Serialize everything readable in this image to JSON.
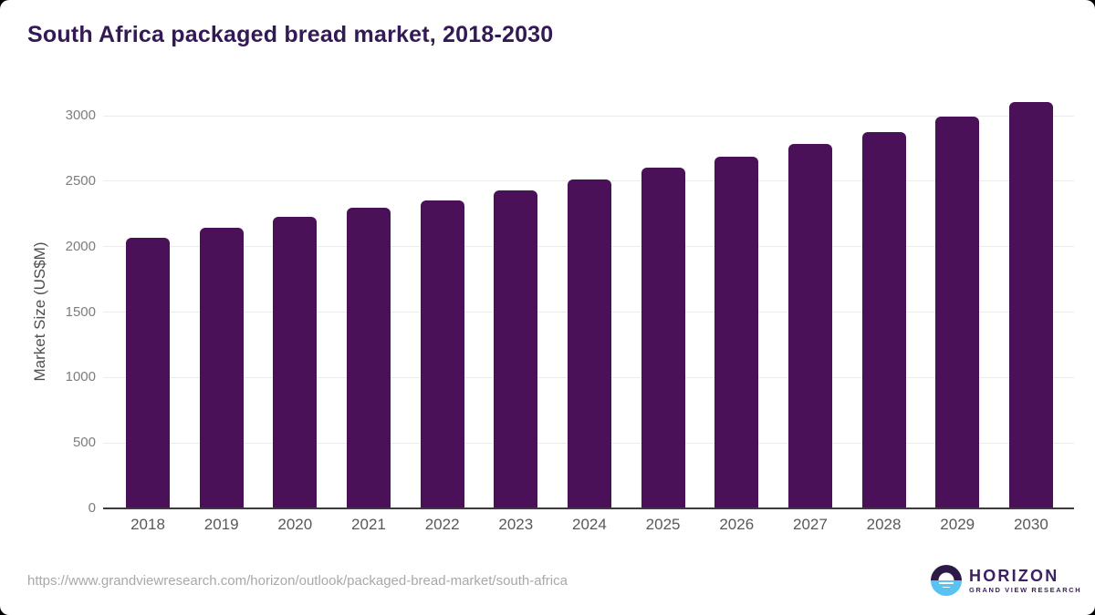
{
  "chart_data": {
    "type": "bar",
    "title": "South Africa packaged bread market, 2018-2030",
    "categories": [
      "2018",
      "2019",
      "2020",
      "2021",
      "2022",
      "2023",
      "2024",
      "2025",
      "2026",
      "2027",
      "2028",
      "2029",
      "2030"
    ],
    "values": [
      2065,
      2145,
      2225,
      2295,
      2355,
      2430,
      2510,
      2600,
      2690,
      2785,
      2875,
      2990,
      3105
    ],
    "xlabel": "",
    "ylabel": "Market Size (US$M)",
    "ylim": [
      0,
      3000
    ],
    "yticks": [
      0,
      500,
      1000,
      1500,
      2000,
      2500,
      3000
    ],
    "grid": true,
    "legend_position": "none",
    "bar_color": "#4a1158"
  },
  "footer": {
    "source_url": "https://www.grandviewresearch.com/horizon/outlook/packaged-bread-market/south-africa",
    "logo": {
      "brand": "HORIZON",
      "sub_brand": "GRAND VIEW RESEARCH",
      "icon": "sunrise-horizon-icon",
      "icon_dark_color": "#2e1a47",
      "icon_blue_color": "#58c3f1",
      "text_color": "#3b2164"
    }
  }
}
